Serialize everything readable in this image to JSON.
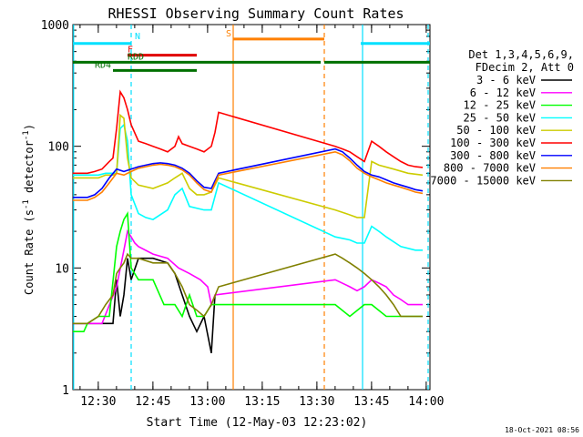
{
  "chart_data": {
    "type": "line",
    "title": "RHESSI Observing Summary Count Rates",
    "xlabel": "Start Time (12-May-03 12:23:02)",
    "ylabel_prefix": "Count Rate (s",
    "ylabel_sup": "-1",
    "ylabel_mid": " detector",
    "ylabel_end": ")",
    "y_log": true,
    "ylim": [
      1,
      1000
    ],
    "xlim": [
      0,
      98
    ],
    "y_ticks": [
      {
        "v": 1,
        "label": "1"
      },
      {
        "v": 10,
        "label": "10"
      },
      {
        "v": 100,
        "label": "100"
      },
      {
        "v": 1000,
        "label": "1000"
      }
    ],
    "x_ticks": [
      {
        "v": 6.97,
        "label": "12:30"
      },
      {
        "v": 21.97,
        "label": "12:45"
      },
      {
        "v": 36.97,
        "label": "13:00"
      },
      {
        "v": 51.97,
        "label": "13:15"
      },
      {
        "v": 66.97,
        "label": "13:30"
      },
      {
        "v": 81.97,
        "label": "13:45"
      },
      {
        "v": 96.97,
        "label": "14:00"
      }
    ],
    "legend_header": [
      "Det 1,3,4,5,6,9,",
      "FDecim 2, Att 0"
    ],
    "timestamp": "18-Oct-2021 08:56",
    "series": [
      {
        "name": "3 - 6 keV",
        "color": "#000000",
        "points": [
          [
            0,
            3.5
          ],
          [
            4,
            3.5
          ],
          [
            8,
            3.5
          ],
          [
            11,
            3.5
          ],
          [
            12,
            8
          ],
          [
            13,
            4
          ],
          [
            14,
            6
          ],
          [
            15,
            12
          ],
          [
            16,
            8
          ],
          [
            18,
            12
          ],
          [
            22,
            12
          ],
          [
            26,
            11
          ],
          [
            28,
            9
          ],
          [
            30,
            6
          ],
          [
            32,
            4
          ],
          [
            34,
            3
          ],
          [
            36,
            4
          ],
          [
            38,
            2
          ],
          [
            39,
            6
          ]
        ]
      },
      {
        "name": "6 - 12 keV",
        "color": "#ff00ff",
        "points": [
          [
            0,
            3.5
          ],
          [
            4,
            3.5
          ],
          [
            8,
            3.5
          ],
          [
            12,
            7
          ],
          [
            14,
            14
          ],
          [
            15,
            20
          ],
          [
            16,
            18
          ],
          [
            17,
            16
          ],
          [
            18,
            15
          ],
          [
            22,
            13
          ],
          [
            26,
            12
          ],
          [
            29,
            10
          ],
          [
            32,
            9
          ],
          [
            35,
            8
          ],
          [
            37,
            7
          ],
          [
            38,
            5
          ],
          [
            39,
            6
          ],
          [
            72,
            8
          ],
          [
            76,
            7
          ],
          [
            78,
            6.5
          ],
          [
            80,
            7
          ],
          [
            82,
            8
          ],
          [
            84,
            7.5
          ],
          [
            86,
            7
          ],
          [
            88,
            6
          ],
          [
            90,
            5.5
          ],
          [
            92,
            5
          ],
          [
            94,
            5
          ],
          [
            96,
            5
          ]
        ]
      },
      {
        "name": "12 - 25 keV",
        "color": "#00ff00",
        "points": [
          [
            0,
            3
          ],
          [
            3,
            3
          ],
          [
            4,
            3.5
          ],
          [
            7,
            4
          ],
          [
            10,
            4
          ],
          [
            12,
            15
          ],
          [
            13,
            20
          ],
          [
            14,
            25
          ],
          [
            15,
            28
          ],
          [
            16,
            10
          ],
          [
            18,
            8
          ],
          [
            22,
            8
          ],
          [
            25,
            5
          ],
          [
            28,
            5
          ],
          [
            30,
            4
          ],
          [
            32,
            6
          ],
          [
            34,
            4
          ],
          [
            36,
            4
          ],
          [
            38,
            5
          ],
          [
            72,
            5
          ],
          [
            76,
            4
          ],
          [
            80,
            5
          ],
          [
            82,
            5
          ],
          [
            86,
            4
          ],
          [
            90,
            4
          ],
          [
            94,
            4
          ],
          [
            96,
            4
          ]
        ]
      },
      {
        "name": "25 - 50 keV",
        "color": "#00ffff",
        "points": [
          [
            0,
            58
          ],
          [
            4,
            58
          ],
          [
            7,
            58
          ],
          [
            9,
            60
          ],
          [
            11,
            60
          ],
          [
            12,
            60
          ],
          [
            13,
            140
          ],
          [
            14,
            150
          ],
          [
            15,
            110
          ],
          [
            16,
            40
          ],
          [
            18,
            28
          ],
          [
            20,
            26
          ],
          [
            22,
            25
          ],
          [
            26,
            30
          ],
          [
            28,
            40
          ],
          [
            30,
            45
          ],
          [
            32,
            32
          ],
          [
            36,
            30
          ],
          [
            38,
            30
          ],
          [
            40,
            50
          ],
          [
            72,
            18
          ],
          [
            76,
            17
          ],
          [
            78,
            16
          ],
          [
            80,
            16
          ],
          [
            82,
            22
          ],
          [
            84,
            20
          ],
          [
            86,
            18
          ],
          [
            90,
            15
          ],
          [
            94,
            14
          ],
          [
            96,
            14
          ]
        ]
      },
      {
        "name": "50 - 100 keV",
        "color": "#cccc00",
        "points": [
          [
            0,
            55
          ],
          [
            4,
            55
          ],
          [
            7,
            55
          ],
          [
            9,
            58
          ],
          [
            11,
            58
          ],
          [
            12,
            60
          ],
          [
            13,
            180
          ],
          [
            14,
            170
          ],
          [
            15,
            80
          ],
          [
            16,
            55
          ],
          [
            18,
            48
          ],
          [
            22,
            45
          ],
          [
            26,
            50
          ],
          [
            28,
            55
          ],
          [
            30,
            60
          ],
          [
            32,
            45
          ],
          [
            34,
            40
          ],
          [
            36,
            40
          ],
          [
            38,
            42
          ],
          [
            40,
            55
          ],
          [
            72,
            30
          ],
          [
            75,
            28
          ],
          [
            78,
            26
          ],
          [
            80,
            26
          ],
          [
            82,
            75
          ],
          [
            84,
            70
          ],
          [
            88,
            65
          ],
          [
            92,
            60
          ],
          [
            96,
            58
          ]
        ]
      },
      {
        "name": "100 - 300 keV",
        "color": "#ff0000",
        "points": [
          [
            0,
            60
          ],
          [
            4,
            60
          ],
          [
            6,
            62
          ],
          [
            8,
            65
          ],
          [
            10,
            75
          ],
          [
            11,
            80
          ],
          [
            12,
            140
          ],
          [
            13,
            280
          ],
          [
            14,
            250
          ],
          [
            15,
            200
          ],
          [
            16,
            150
          ],
          [
            18,
            110
          ],
          [
            20,
            105
          ],
          [
            22,
            100
          ],
          [
            24,
            95
          ],
          [
            26,
            90
          ],
          [
            28,
            100
          ],
          [
            29,
            120
          ],
          [
            30,
            105
          ],
          [
            32,
            100
          ],
          [
            34,
            95
          ],
          [
            36,
            90
          ],
          [
            38,
            100
          ],
          [
            39,
            130
          ],
          [
            40,
            190
          ],
          [
            72,
            100
          ],
          [
            74,
            95
          ],
          [
            76,
            90
          ],
          [
            78,
            82
          ],
          [
            80,
            75
          ],
          [
            82,
            110
          ],
          [
            84,
            100
          ],
          [
            86,
            90
          ],
          [
            88,
            82
          ],
          [
            90,
            75
          ],
          [
            92,
            70
          ],
          [
            94,
            68
          ],
          [
            96,
            67
          ]
        ]
      },
      {
        "name": "300 - 800 keV",
        "color": "#0000ff",
        "points": [
          [
            0,
            38
          ],
          [
            4,
            38
          ],
          [
            6,
            40
          ],
          [
            8,
            45
          ],
          [
            10,
            55
          ],
          [
            12,
            65
          ],
          [
            14,
            62
          ],
          [
            16,
            65
          ],
          [
            18,
            68
          ],
          [
            20,
            70
          ],
          [
            22,
            72
          ],
          [
            24,
            73
          ],
          [
            26,
            72
          ],
          [
            28,
            70
          ],
          [
            30,
            66
          ],
          [
            32,
            60
          ],
          [
            34,
            52
          ],
          [
            36,
            46
          ],
          [
            38,
            45
          ],
          [
            40,
            60
          ],
          [
            72,
            95
          ],
          [
            74,
            90
          ],
          [
            76,
            80
          ],
          [
            78,
            70
          ],
          [
            80,
            62
          ],
          [
            82,
            58
          ],
          [
            84,
            56
          ],
          [
            86,
            53
          ],
          [
            88,
            50
          ],
          [
            90,
            48
          ],
          [
            92,
            46
          ],
          [
            94,
            44
          ],
          [
            96,
            43
          ]
        ]
      },
      {
        "name": "800 - 7000 keV",
        "color": "#ff8000",
        "points": [
          [
            0,
            36
          ],
          [
            4,
            36
          ],
          [
            6,
            38
          ],
          [
            8,
            42
          ],
          [
            10,
            50
          ],
          [
            12,
            60
          ],
          [
            14,
            58
          ],
          [
            16,
            62
          ],
          [
            18,
            66
          ],
          [
            20,
            68
          ],
          [
            22,
            70
          ],
          [
            24,
            71
          ],
          [
            26,
            70
          ],
          [
            28,
            68
          ],
          [
            30,
            64
          ],
          [
            32,
            58
          ],
          [
            34,
            50
          ],
          [
            36,
            44
          ],
          [
            38,
            42
          ],
          [
            40,
            58
          ],
          [
            72,
            90
          ],
          [
            74,
            85
          ],
          [
            76,
            76
          ],
          [
            78,
            66
          ],
          [
            80,
            60
          ],
          [
            82,
            56
          ],
          [
            84,
            53
          ],
          [
            86,
            50
          ],
          [
            88,
            48
          ],
          [
            90,
            46
          ],
          [
            92,
            44
          ],
          [
            94,
            42
          ],
          [
            96,
            41
          ]
        ]
      },
      {
        "name": "7000 - 15000 keV",
        "color": "#808000",
        "points": [
          [
            0,
            3.5
          ],
          [
            4,
            3.5
          ],
          [
            7,
            4
          ],
          [
            9,
            5
          ],
          [
            11,
            6
          ],
          [
            12,
            9
          ],
          [
            13,
            10
          ],
          [
            14,
            11
          ],
          [
            15,
            13
          ],
          [
            16,
            12
          ],
          [
            18,
            12
          ],
          [
            22,
            11
          ],
          [
            26,
            11
          ],
          [
            28,
            9
          ],
          [
            30,
            7
          ],
          [
            32,
            5
          ],
          [
            34,
            4.5
          ],
          [
            36,
            4
          ],
          [
            38,
            5
          ],
          [
            40,
            7
          ],
          [
            72,
            13
          ],
          [
            74,
            12
          ],
          [
            76,
            11
          ],
          [
            78,
            10
          ],
          [
            80,
            9
          ],
          [
            82,
            8
          ],
          [
            84,
            7
          ],
          [
            86,
            6
          ],
          [
            88,
            5
          ],
          [
            90,
            4
          ],
          [
            92,
            4
          ],
          [
            94,
            4
          ],
          [
            96,
            4
          ]
        ]
      }
    ],
    "state_bars": [
      {
        "label": "",
        "color": "#00e0ff",
        "y": 700,
        "segments": [
          [
            0,
            16
          ],
          [
            79,
            98
          ]
        ]
      },
      {
        "label": "N",
        "color": "#00e0ff",
        "y": 720,
        "segments": []
      },
      {
        "label": "F",
        "color": "#e00000",
        "y": 560,
        "segments": [
          [
            15,
            34
          ]
        ]
      },
      {
        "label": "RDD",
        "color": "#007000",
        "y": 490,
        "segments": [
          [
            0,
            34
          ],
          [
            34,
            68
          ],
          [
            69,
            79
          ],
          [
            79,
            98
          ]
        ]
      },
      {
        "label": "RD4",
        "color": "#007000",
        "y": 420,
        "segments": [
          [
            11,
            34
          ]
        ]
      },
      {
        "label": "S",
        "color": "#ff8000",
        "y": 760,
        "segments": [
          [
            44,
            69
          ]
        ]
      }
    ],
    "vlines": [
      {
        "x": 0.2,
        "color": "#00e0ff",
        "style": "solid"
      },
      {
        "x": 16,
        "color": "#00e0ff",
        "style": "dashed"
      },
      {
        "x": 44,
        "color": "#ff8000",
        "style": "solid"
      },
      {
        "x": 69,
        "color": "#ff8000",
        "style": "dashed"
      },
      {
        "x": 79.5,
        "color": "#00e0ff",
        "style": "solid"
      },
      {
        "x": 97.5,
        "color": "#00e0ff",
        "style": "dashed"
      }
    ]
  }
}
